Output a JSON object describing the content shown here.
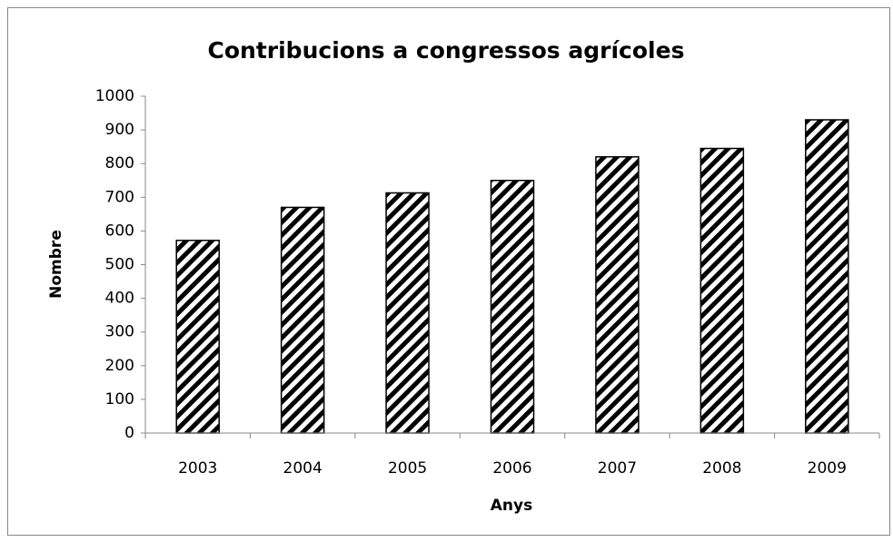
{
  "chart_data": {
    "type": "bar",
    "title": "Contribucions a congressos agrícoles",
    "xlabel": "Anys",
    "ylabel": "Nombre",
    "categories": [
      "2003",
      "2004",
      "2005",
      "2006",
      "2007",
      "2008",
      "2009"
    ],
    "values": [
      572,
      670,
      713,
      750,
      820,
      845,
      930
    ],
    "color": "#000000",
    "ylim": [
      0,
      1000
    ],
    "yticks": [
      0,
      100,
      200,
      300,
      400,
      500,
      600,
      700,
      800,
      900,
      1000
    ],
    "grid": false
  }
}
